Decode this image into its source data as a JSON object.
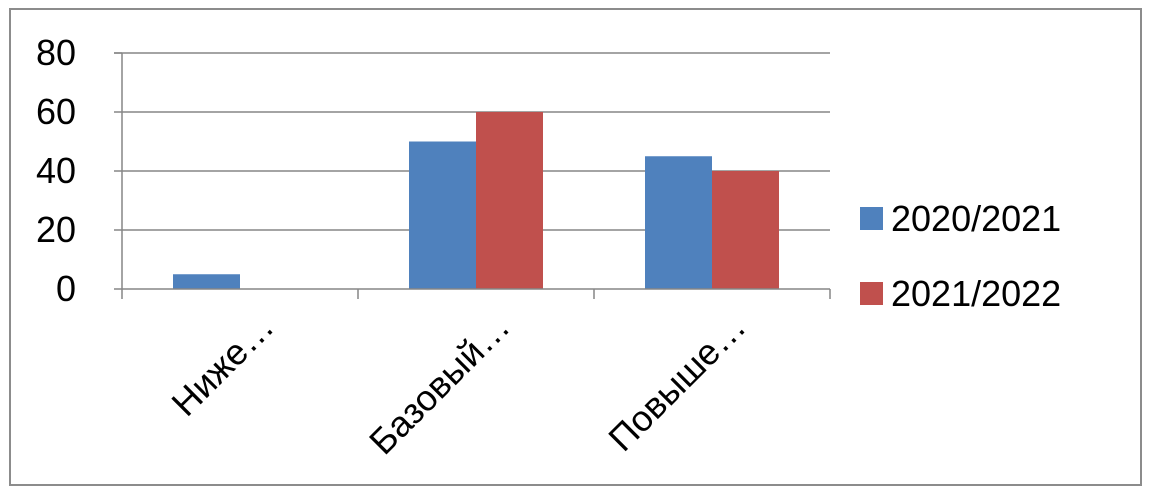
{
  "chart_data": {
    "type": "bar",
    "title": "",
    "xlabel": "",
    "ylabel": "",
    "categories": [
      "Ниже…",
      "Базовый…",
      "Повыше…"
    ],
    "series": [
      {
        "name": "2020/2021",
        "values": [
          5,
          50,
          45
        ],
        "color": "#4f81bd"
      },
      {
        "name": "2021/2022",
        "values": [
          0,
          60,
          40
        ],
        "color": "#c0504d"
      }
    ],
    "ylim": [
      0,
      80
    ],
    "yticks": [
      "0",
      "20",
      "40",
      "60",
      "80"
    ],
    "grid": true,
    "legend": "right"
  }
}
